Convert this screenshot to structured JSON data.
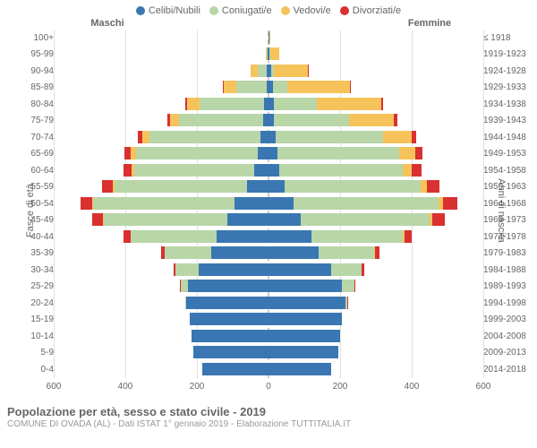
{
  "type": "population-pyramid",
  "legend": [
    {
      "label": "Celibi/Nubili",
      "color": "#3a77b2"
    },
    {
      "label": "Coniugati/e",
      "color": "#b8d6a8"
    },
    {
      "label": "Vedovi/e",
      "color": "#f6c35a"
    },
    {
      "label": "Divorziati/e",
      "color": "#d93030"
    }
  ],
  "gender_left": "Maschi",
  "gender_right": "Femmine",
  "ylabel_left": "Fasce di età",
  "ylabel_right": "Anni di nascita",
  "age_labels": [
    "100+",
    "95-99",
    "90-94",
    "85-89",
    "80-84",
    "75-79",
    "70-74",
    "65-69",
    "60-64",
    "55-59",
    "50-54",
    "45-49",
    "40-44",
    "35-39",
    "30-34",
    "25-29",
    "20-24",
    "15-19",
    "10-14",
    "5-9",
    "0-4"
  ],
  "birth_labels": [
    "≤ 1918",
    "1919-1923",
    "1924-1928",
    "1929-1933",
    "1934-1938",
    "1939-1943",
    "1944-1948",
    "1949-1953",
    "1954-1958",
    "1959-1963",
    "1964-1968",
    "1969-1973",
    "1974-1978",
    "1979-1983",
    "1984-1988",
    "1989-1993",
    "1994-1998",
    "1999-2003",
    "2004-2008",
    "2009-2013",
    "2014-2018"
  ],
  "x_ticks": [
    600,
    400,
    200,
    0,
    200,
    400,
    600
  ],
  "x_max": 600,
  "colors": {
    "single": "#3a77b2",
    "married": "#b8d6a8",
    "widowed": "#f6c35a",
    "divorced": "#d93030",
    "grid": "#e0e0e0",
    "centerline": "#cccccc",
    "bg": "#ffffff",
    "text": "#666666"
  },
  "males": [
    {
      "single": 1,
      "married": 0,
      "widowed": 0,
      "divorced": 0
    },
    {
      "single": 2,
      "married": 3,
      "widowed": 3,
      "divorced": 0
    },
    {
      "single": 4,
      "married": 25,
      "widowed": 20,
      "divorced": 0
    },
    {
      "single": 6,
      "married": 85,
      "widowed": 35,
      "divorced": 2
    },
    {
      "single": 12,
      "married": 180,
      "widowed": 35,
      "divorced": 6
    },
    {
      "single": 15,
      "married": 235,
      "widowed": 25,
      "divorced": 8
    },
    {
      "single": 22,
      "married": 310,
      "widowed": 20,
      "divorced": 14
    },
    {
      "single": 30,
      "married": 340,
      "widowed": 15,
      "divorced": 18
    },
    {
      "single": 40,
      "married": 335,
      "widowed": 8,
      "divorced": 22
    },
    {
      "single": 60,
      "married": 370,
      "widowed": 5,
      "divorced": 30
    },
    {
      "single": 95,
      "married": 395,
      "widowed": 3,
      "divorced": 32
    },
    {
      "single": 115,
      "married": 345,
      "widowed": 2,
      "divorced": 30
    },
    {
      "single": 145,
      "married": 240,
      "widowed": 1,
      "divorced": 18
    },
    {
      "single": 160,
      "married": 130,
      "widowed": 0,
      "divorced": 10
    },
    {
      "single": 195,
      "married": 65,
      "widowed": 0,
      "divorced": 5
    },
    {
      "single": 225,
      "married": 20,
      "widowed": 0,
      "divorced": 2
    },
    {
      "single": 230,
      "married": 2,
      "widowed": 0,
      "divorced": 0
    },
    {
      "single": 220,
      "married": 0,
      "widowed": 0,
      "divorced": 0
    },
    {
      "single": 215,
      "married": 0,
      "widowed": 0,
      "divorced": 0
    },
    {
      "single": 210,
      "married": 0,
      "widowed": 0,
      "divorced": 0
    },
    {
      "single": 185,
      "married": 0,
      "widowed": 0,
      "divorced": 0
    }
  ],
  "females": [
    {
      "single": 2,
      "married": 0,
      "widowed": 3,
      "divorced": 0
    },
    {
      "single": 3,
      "married": 1,
      "widowed": 25,
      "divorced": 0
    },
    {
      "single": 8,
      "married": 6,
      "widowed": 95,
      "divorced": 1
    },
    {
      "single": 12,
      "married": 40,
      "widowed": 175,
      "divorced": 3
    },
    {
      "single": 14,
      "married": 120,
      "widowed": 180,
      "divorced": 5
    },
    {
      "single": 16,
      "married": 210,
      "widowed": 125,
      "divorced": 8
    },
    {
      "single": 20,
      "married": 300,
      "widowed": 80,
      "divorced": 13
    },
    {
      "single": 24,
      "married": 340,
      "widowed": 45,
      "divorced": 20
    },
    {
      "single": 30,
      "married": 345,
      "widowed": 25,
      "divorced": 28
    },
    {
      "single": 45,
      "married": 380,
      "widowed": 18,
      "divorced": 35
    },
    {
      "single": 70,
      "married": 405,
      "widowed": 12,
      "divorced": 40
    },
    {
      "single": 90,
      "married": 360,
      "widowed": 8,
      "divorced": 35
    },
    {
      "single": 120,
      "married": 255,
      "widowed": 4,
      "divorced": 22
    },
    {
      "single": 140,
      "married": 155,
      "widowed": 2,
      "divorced": 12
    },
    {
      "single": 175,
      "married": 85,
      "widowed": 1,
      "divorced": 6
    },
    {
      "single": 205,
      "married": 35,
      "widowed": 0,
      "divorced": 3
    },
    {
      "single": 215,
      "married": 6,
      "widowed": 0,
      "divorced": 1
    },
    {
      "single": 205,
      "married": 0,
      "widowed": 0,
      "divorced": 0
    },
    {
      "single": 200,
      "married": 0,
      "widowed": 0,
      "divorced": 0
    },
    {
      "single": 195,
      "married": 0,
      "widowed": 0,
      "divorced": 0
    },
    {
      "single": 175,
      "married": 0,
      "widowed": 0,
      "divorced": 0
    }
  ],
  "footer_title": "Popolazione per età, sesso e stato civile - 2019",
  "footer_sub": "COMUNE DI OVADA (AL) - Dati ISTAT 1° gennaio 2019 - Elaborazione TUTTITALIA.IT"
}
